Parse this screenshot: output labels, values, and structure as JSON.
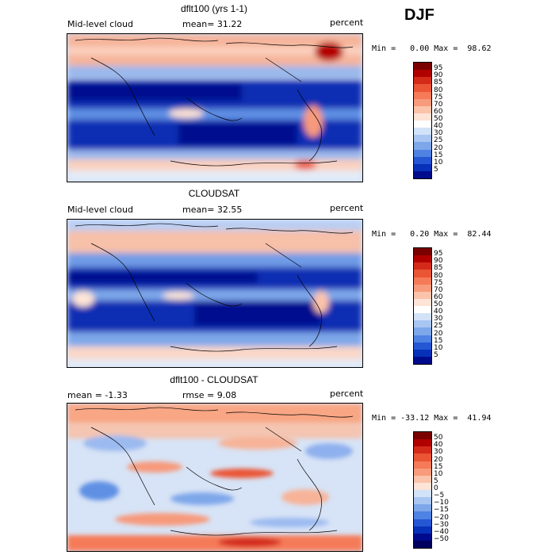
{
  "season": "DJF",
  "panels": [
    {
      "title": "dflt100 (yrs 1-1)",
      "left_label": "Mid-level cloud",
      "center_label": "mean=  31.22",
      "right_label": "percent",
      "stats": "Min =   0.00 Max =  98.62",
      "colorbar_labels": [
        "95",
        "90",
        "85",
        "80",
        "75",
        "70",
        "60",
        "50",
        "40",
        "30",
        "25",
        "20",
        "15",
        "10",
        "5"
      ],
      "colorbar_colors": [
        "#7a0000",
        "#b00000",
        "#d42a1a",
        "#ea5536",
        "#f57a58",
        "#f89a7c",
        "#fbc3aa",
        "#fde4d6",
        "#ffffff",
        "#d2e2f8",
        "#a9c6f2",
        "#7ea7ea",
        "#4f82e2",
        "#2557d4",
        "#0631b8",
        "#000a8c"
      ]
    },
    {
      "title": "CLOUDSAT",
      "left_label": "Mid-level cloud",
      "center_label": "mean=  32.55",
      "right_label": "percent",
      "stats": "Min =   0.20 Max =  82.44",
      "colorbar_labels": [
        "95",
        "90",
        "85",
        "80",
        "75",
        "70",
        "60",
        "50",
        "40",
        "30",
        "25",
        "20",
        "15",
        "10",
        "5"
      ],
      "colorbar_colors": [
        "#7a0000",
        "#b00000",
        "#d42a1a",
        "#ea5536",
        "#f57a58",
        "#f89a7c",
        "#fbc3aa",
        "#fde4d6",
        "#ffffff",
        "#d2e2f8",
        "#a9c6f2",
        "#7ea7ea",
        "#4f82e2",
        "#2557d4",
        "#0631b8",
        "#000a8c"
      ]
    },
    {
      "title": "dflt100 - CLOUDSAT",
      "left_label": "mean =  -1.33",
      "center_label": "rmse =   9.08",
      "right_label": "percent",
      "stats": "Min = -33.12 Max =  41.94",
      "colorbar_labels": [
        "50",
        "40",
        "30",
        "20",
        "15",
        "10",
        "5",
        "0",
        "−5",
        "−10",
        "−15",
        "−20",
        "−30",
        "−40",
        "−50"
      ],
      "colorbar_colors": [
        "#7a0000",
        "#b00000",
        "#d42a1a",
        "#ea5536",
        "#f57a58",
        "#f89a7c",
        "#fbc3aa",
        "#fde4d6",
        "#d2e2f8",
        "#a9c6f2",
        "#7ea7ea",
        "#4f82e2",
        "#2557d4",
        "#0631b8",
        "#000a8c",
        "#00005e"
      ]
    }
  ]
}
